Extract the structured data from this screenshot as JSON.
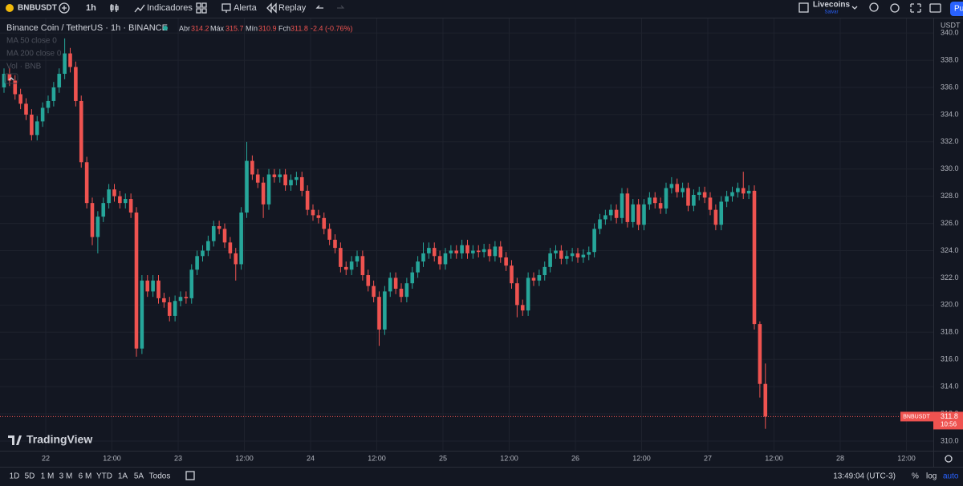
{
  "toolbar": {
    "symbol": "BNBUSDT",
    "interval": "1h",
    "indicators": "Indicadores",
    "alert": "Alerta",
    "replay": "Replay",
    "layout_name": "Livecoins",
    "layout_status": "Salvar",
    "publish": "Pu"
  },
  "legend": {
    "title": "Binance Coin / TetherUS · 1h · BINANCE",
    "open_label": "Abr",
    "high_label": "Máx",
    "low_label": "Mín",
    "close_label": "Fch",
    "change": "-2.4 (-0.76%)",
    "indicators": [
      "MA 50 close 0",
      "MA 200 close 0",
      "Vol · BNB"
    ]
  },
  "chart_data": {
    "type": "candlestick",
    "currency": "USDT",
    "up_color": "#26a69a",
    "down_color": "#ef5350",
    "grid": true,
    "ylim": [
      309.29,
      341.07
    ],
    "yticks": [
      {
        "value": 310,
        "label": "310.0"
      },
      {
        "value": 312,
        "label": "312.0"
      },
      {
        "value": 314,
        "label": "314.0"
      },
      {
        "value": 316,
        "label": "316.0"
      },
      {
        "value": 318,
        "label": "318.0"
      },
      {
        "value": 320,
        "label": "320.0"
      },
      {
        "value": 322,
        "label": "322.0"
      },
      {
        "value": 324,
        "label": "324.0"
      },
      {
        "value": 326,
        "label": "326.0"
      },
      {
        "value": 328,
        "label": "328.0"
      },
      {
        "value": 330,
        "label": "330.0"
      },
      {
        "value": 332,
        "label": "332.0"
      },
      {
        "value": 334,
        "label": "334.0"
      },
      {
        "value": 336,
        "label": "336.0"
      },
      {
        "value": 338,
        "label": "338.0"
      },
      {
        "value": 340,
        "label": "340.0"
      }
    ],
    "x_labels": [
      "22",
      "12:00",
      "23",
      "12:00",
      "24",
      "12:00",
      "25",
      "12:00",
      "26",
      "12:00",
      "27",
      "12:00",
      "28",
      "12:00"
    ],
    "price_tag": "BNBUSDT",
    "countdown": "10:56",
    "candles": [
      [
        336,
        337.4,
        335.6,
        337
      ],
      [
        337,
        337.4,
        336.1,
        336.5
      ],
      [
        336.5,
        336.9,
        335.1,
        335.5
      ],
      [
        335.5,
        335.9,
        334.4,
        334.8
      ],
      [
        334.8,
        335.2,
        333.6,
        334
      ],
      [
        334,
        334.4,
        332.1,
        332.5
      ],
      [
        332.5,
        333.9,
        332.1,
        333.5
      ],
      [
        333.5,
        334.9,
        333.1,
        334.5
      ],
      [
        334.5,
        335.4,
        334.1,
        335
      ],
      [
        335,
        336.4,
        334.6,
        336
      ],
      [
        336,
        337.4,
        335.6,
        337
      ],
      [
        337,
        339.6,
        336.6,
        338.5
      ],
      [
        338.5,
        338.9,
        337.1,
        337.5
      ],
      [
        337.5,
        337.9,
        334.6,
        335
      ],
      [
        335,
        335.4,
        330.1,
        330.5
      ],
      [
        330.5,
        330.9,
        327.1,
        327.5
      ],
      [
        327.5,
        327.9,
        324.4,
        325
      ],
      [
        325,
        326.9,
        323.8,
        326.5
      ],
      [
        326.5,
        327.9,
        326.1,
        327.5
      ],
      [
        327.5,
        328.9,
        327.1,
        328.5
      ],
      [
        328.5,
        328.9,
        327.6,
        328
      ],
      [
        328,
        328.4,
        327.1,
        327.5
      ],
      [
        327.5,
        328.2,
        327.1,
        327.8
      ],
      [
        327.8,
        328.2,
        326.4,
        326.8
      ],
      [
        326.8,
        327.2,
        316.2,
        316.8
      ],
      [
        316.8,
        322.2,
        316.4,
        321.8
      ],
      [
        321.8,
        322.2,
        320.6,
        321
      ],
      [
        321,
        322.2,
        320.6,
        321.8
      ],
      [
        321.8,
        322.2,
        320.1,
        320.5
      ],
      [
        320.5,
        320.9,
        319.8,
        320.2
      ],
      [
        320.2,
        320.6,
        318.8,
        319.2
      ],
      [
        319.2,
        320.7,
        318.8,
        320.3
      ],
      [
        320.3,
        321,
        319.9,
        320.6
      ],
      [
        320.6,
        321,
        320.1,
        320.5
      ],
      [
        320.5,
        323,
        320.1,
        322.6
      ],
      [
        322.6,
        324,
        322.2,
        323.6
      ],
      [
        323.6,
        324.4,
        323.2,
        324
      ],
      [
        324,
        325.1,
        323.6,
        324.7
      ],
      [
        324.7,
        326.2,
        324.3,
        325.8
      ],
      [
        325.8,
        326.2,
        325.2,
        325.6
      ],
      [
        325.6,
        326,
        324.2,
        324.6
      ],
      [
        324.6,
        325,
        323.4,
        323.8
      ],
      [
        323.8,
        324.2,
        321.8,
        323
      ],
      [
        323,
        327.2,
        322.6,
        326.8
      ],
      [
        326.8,
        332,
        326.4,
        330.6
      ],
      [
        330.6,
        331,
        329.2,
        329.6
      ],
      [
        329.6,
        330,
        328.6,
        329
      ],
      [
        329,
        329.4,
        326.4,
        327.4
      ],
      [
        327.4,
        330,
        327,
        329.6
      ],
      [
        329.6,
        330,
        329,
        329.4
      ],
      [
        329.4,
        330,
        329,
        329.6
      ],
      [
        329.6,
        330,
        328.4,
        328.8
      ],
      [
        328.8,
        329.6,
        328.4,
        329.2
      ],
      [
        329.2,
        329.8,
        328.8,
        329.4
      ],
      [
        329.4,
        329.8,
        328,
        328.4
      ],
      [
        328.4,
        328.8,
        326.6,
        327
      ],
      [
        327,
        327.4,
        326.2,
        326.6
      ],
      [
        326.6,
        327,
        326,
        326.4
      ],
      [
        326.4,
        326.8,
        325.2,
        325.6
      ],
      [
        325.6,
        326,
        324.4,
        324.8
      ],
      [
        324.8,
        325.2,
        323.8,
        324.2
      ],
      [
        324.2,
        324.6,
        322.4,
        322.8
      ],
      [
        322.8,
        323.2,
        322.2,
        322.6
      ],
      [
        322.6,
        323.6,
        322.2,
        323.2
      ],
      [
        323.2,
        324,
        322.8,
        323.6
      ],
      [
        323.6,
        324,
        321.8,
        322.2
      ],
      [
        322.2,
        322.6,
        321,
        321.4
      ],
      [
        321.4,
        321.8,
        320.2,
        320.6
      ],
      [
        320.6,
        321,
        317,
        318.2
      ],
      [
        318.2,
        321.4,
        317.8,
        321
      ],
      [
        321,
        322.4,
        320.6,
        322
      ],
      [
        322,
        322.4,
        320.8,
        321.2
      ],
      [
        321.2,
        321.6,
        320.2,
        320.6
      ],
      [
        320.6,
        322,
        320.2,
        321.6
      ],
      [
        321.6,
        322.8,
        321.2,
        322.4
      ],
      [
        322.4,
        323.6,
        322,
        323.2
      ],
      [
        323.2,
        324.6,
        322.8,
        323.8
      ],
      [
        323.8,
        324.6,
        323.4,
        324.2
      ],
      [
        324.2,
        324.6,
        323.2,
        323.6
      ],
      [
        323.6,
        324,
        322.6,
        323
      ],
      [
        323,
        324.2,
        322.6,
        323.8
      ],
      [
        323.8,
        324.4,
        323.4,
        324
      ],
      [
        324,
        324.4,
        323.4,
        323.8
      ],
      [
        323.8,
        324.8,
        323.4,
        324.4
      ],
      [
        324.4,
        324.8,
        323.4,
        323.8
      ],
      [
        323.8,
        324.4,
        323.4,
        324
      ],
      [
        324,
        324.4,
        323.5,
        323.9
      ],
      [
        323.9,
        324.5,
        323.5,
        324.1
      ],
      [
        324.1,
        324.5,
        323.2,
        323.6
      ],
      [
        323.6,
        324.7,
        323.2,
        324.3
      ],
      [
        324.3,
        324.7,
        323.1,
        323.5
      ],
      [
        323.5,
        323.9,
        322.5,
        322.9
      ],
      [
        322.9,
        323.3,
        321.2,
        321.6
      ],
      [
        321.6,
        322,
        319.1,
        320
      ],
      [
        320,
        320.4,
        319.2,
        319.6
      ],
      [
        319.6,
        322.4,
        319.2,
        322
      ],
      [
        322,
        322.4,
        321.4,
        321.8
      ],
      [
        321.8,
        322.6,
        321.4,
        322.2
      ],
      [
        322.2,
        323.2,
        321.8,
        322.8
      ],
      [
        322.8,
        324.2,
        322.4,
        323.8
      ],
      [
        323.8,
        324.4,
        323.4,
        324
      ],
      [
        324,
        324.4,
        323,
        323.4
      ],
      [
        323.4,
        324,
        323,
        323.6
      ],
      [
        323.6,
        324.2,
        323.2,
        323.8
      ],
      [
        323.8,
        324.2,
        323.1,
        323.5
      ],
      [
        323.5,
        324.1,
        323.1,
        323.7
      ],
      [
        323.7,
        324.3,
        323.3,
        323.9
      ],
      [
        323.9,
        326,
        323.5,
        325.6
      ],
      [
        325.6,
        326.7,
        325.2,
        326.3
      ],
      [
        326.3,
        327,
        325.9,
        326.6
      ],
      [
        326.6,
        327.4,
        326.2,
        327
      ],
      [
        327,
        327.4,
        326,
        326.4
      ],
      [
        326.4,
        328.6,
        326,
        328.2
      ],
      [
        328.2,
        328.6,
        325.7,
        326.1
      ],
      [
        326.1,
        327.8,
        325.7,
        327.4
      ],
      [
        327.4,
        327.8,
        325.5,
        325.9
      ],
      [
        325.9,
        327.8,
        325.5,
        327.4
      ],
      [
        327.4,
        328.3,
        327,
        327.9
      ],
      [
        327.9,
        328.3,
        327.1,
        327.5
      ],
      [
        327.5,
        327.9,
        326.7,
        327.1
      ],
      [
        327.1,
        329,
        326.7,
        328.6
      ],
      [
        328.6,
        329.4,
        328.2,
        328.9
      ],
      [
        328.9,
        329.3,
        327.9,
        328.3
      ],
      [
        328.3,
        329,
        327.9,
        328.6
      ],
      [
        328.6,
        329,
        326.9,
        327.3
      ],
      [
        327.3,
        328.5,
        326.9,
        328.1
      ],
      [
        328.1,
        328.7,
        327.7,
        328.3
      ],
      [
        328.3,
        328.7,
        327.5,
        327.9
      ],
      [
        327.9,
        328.3,
        326.6,
        327
      ],
      [
        327,
        327.4,
        325.5,
        325.9
      ],
      [
        325.9,
        328,
        325.5,
        327.6
      ],
      [
        327.6,
        328.4,
        327.2,
        328
      ],
      [
        328,
        328.7,
        327.6,
        328.3
      ],
      [
        328.3,
        329,
        327.9,
        328.6
      ],
      [
        328.6,
        329.8,
        327.8,
        328.2
      ],
      [
        328.2,
        328.8,
        327.8,
        328.4
      ],
      [
        328.4,
        328.8,
        318.2,
        318.6
      ],
      [
        318.6,
        318.8,
        313.2,
        314.2
      ],
      [
        314.2,
        315.7,
        310.9,
        311.8
      ]
    ]
  },
  "brand": "TradingView",
  "footer": {
    "ranges": [
      "1D",
      "5D",
      "1 M",
      "3 M",
      "6 M",
      "YTD",
      "1A",
      "5A",
      "Todos"
    ],
    "clock": "13:49:04 (UTC-3)",
    "percent": "%",
    "log": "log",
    "auto": "auto"
  }
}
